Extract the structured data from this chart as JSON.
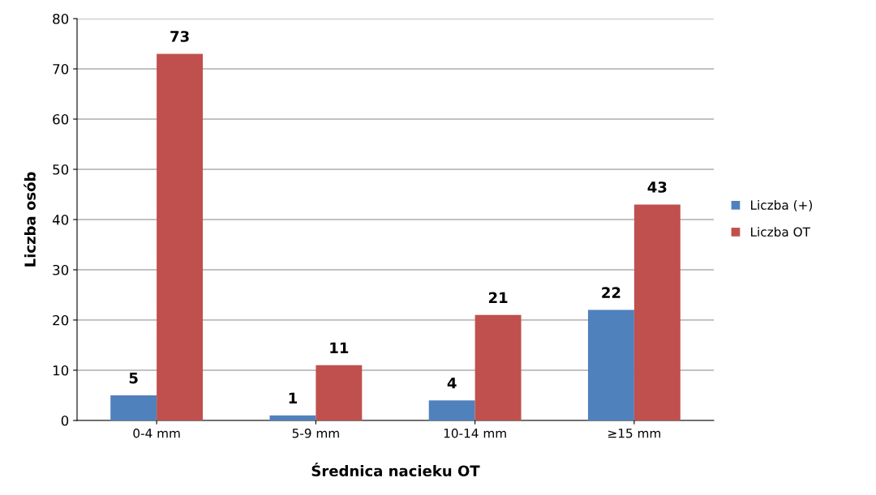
{
  "chart_data": {
    "type": "bar",
    "xlabel": "Średnica nacieku OT",
    "ylabel": "Liczba osób",
    "categories": [
      "0-4 mm",
      "5-9 mm",
      "10-14 mm",
      "≥15 mm"
    ],
    "series": [
      {
        "name": "Liczba (+)",
        "color": "#4f81bd",
        "values": [
          5,
          1,
          4,
          22
        ]
      },
      {
        "name": "Liczba OT",
        "color": "#c0504d",
        "values": [
          73,
          11,
          21,
          43
        ]
      }
    ],
    "ylim": [
      0,
      80
    ],
    "yticks": [
      0,
      10,
      20,
      30,
      40,
      50,
      60,
      70,
      80
    ],
    "grid": "y",
    "legend": "right",
    "data_labels": true
  }
}
